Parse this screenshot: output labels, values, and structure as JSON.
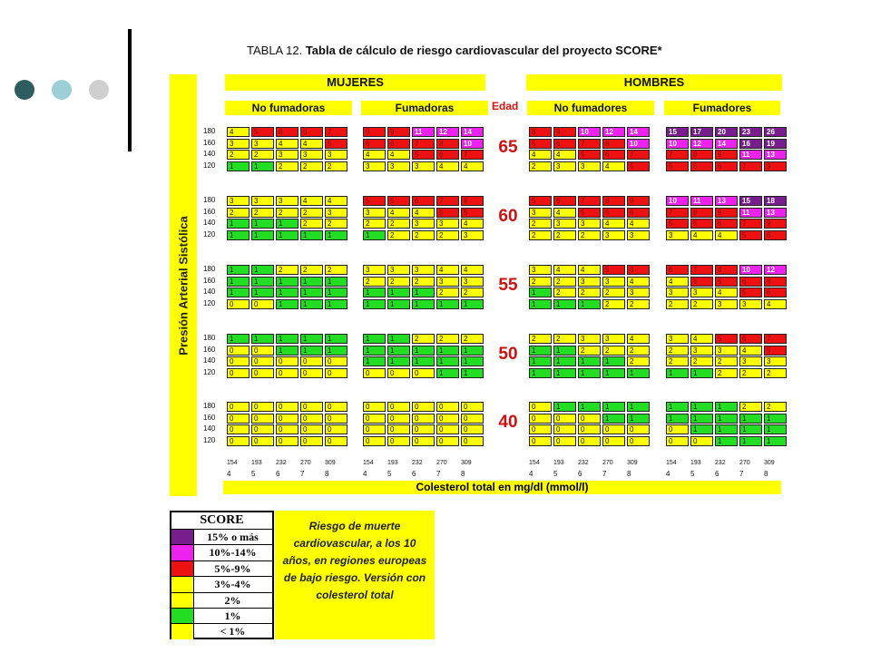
{
  "slide": {
    "title_prefix": "TABLA 12.",
    "title_main": "Tabla de cálculo de riesgo cardiovascular del proyecto SCORE*"
  },
  "table": {
    "ylabel": "Presión Arterial Sistólica",
    "women_label": "MUJERES",
    "men_label": "HOMBRES",
    "non_smokers_label_women": "No fumadoras",
    "smokers_label_women": "Fumadoras",
    "non_smokers_label_men": "No fumadores",
    "smokers_label_men": "Fumadores",
    "age_header": "Edad",
    "xlabel": "Colesterol total en mg/dl (mmol/l)",
    "bp_levels": [
      "180",
      "160",
      "140",
      "120"
    ],
    "chol_mg": [
      "154",
      "193",
      "232",
      "270",
      "309"
    ],
    "chol_mmol": [
      "4",
      "5",
      "6",
      "7",
      "8"
    ],
    "ages": [
      {
        "age": "65",
        "women_non": [
          [
            "4",
            "5",
            "6",
            "6",
            "7"
          ],
          [
            "3",
            "3",
            "4",
            "4",
            "5"
          ],
          [
            "2",
            "2",
            "3",
            "3",
            "3"
          ],
          [
            "1",
            "1",
            "2",
            "2",
            "2"
          ]
        ],
        "women_smk": [
          [
            "9",
            "9",
            "11",
            "12",
            "14"
          ],
          [
            "6",
            "6",
            "7",
            "8",
            "10"
          ],
          [
            "4",
            "4",
            "5",
            "6",
            "7"
          ],
          [
            "3",
            "3",
            "3",
            "4",
            "4"
          ]
        ],
        "men_non": [
          [
            "8",
            "9",
            "10",
            "12",
            "14"
          ],
          [
            "5",
            "6",
            "7",
            "8",
            "10"
          ],
          [
            "4",
            "4",
            "5",
            "6",
            "7"
          ],
          [
            "2",
            "3",
            "3",
            "4",
            "5"
          ]
        ],
        "men_smk": [
          [
            "15",
            "17",
            "20",
            "23",
            "26"
          ],
          [
            "10",
            "12",
            "14",
            "16",
            "19"
          ],
          [
            "7",
            "8",
            "9",
            "11",
            "13"
          ],
          [
            "5",
            "5",
            "6",
            "7",
            "9"
          ]
        ]
      },
      {
        "age": "60",
        "women_non": [
          [
            "3",
            "3",
            "3",
            "4",
            "4"
          ],
          [
            "2",
            "2",
            "2",
            "2",
            "3"
          ],
          [
            "1",
            "1",
            "1",
            "2",
            "2"
          ],
          [
            "1",
            "1",
            "1",
            "1",
            "1"
          ]
        ],
        "women_smk": [
          [
            "5",
            "5",
            "6",
            "7",
            "8"
          ],
          [
            "3",
            "4",
            "4",
            "5",
            "5"
          ],
          [
            "2",
            "2",
            "3",
            "3",
            "4"
          ],
          [
            "1",
            "2",
            "2",
            "2",
            "3"
          ]
        ],
        "men_non": [
          [
            "5",
            "6",
            "7",
            "8",
            "9"
          ],
          [
            "3",
            "4",
            "5",
            "5",
            "6"
          ],
          [
            "2",
            "3",
            "3",
            "4",
            "4"
          ],
          [
            "2",
            "2",
            "2",
            "3",
            "3"
          ]
        ],
        "men_smk": [
          [
            "10",
            "11",
            "13",
            "15",
            "18"
          ],
          [
            "7",
            "8",
            "9",
            "11",
            "13"
          ],
          [
            "5",
            "5",
            "6",
            "7",
            "9"
          ],
          [
            "3",
            "4",
            "4",
            "5",
            "6"
          ]
        ]
      },
      {
        "age": "55",
        "women_non": [
          [
            "1",
            "1",
            "2",
            "2",
            "2"
          ],
          [
            "1",
            "1",
            "1",
            "1",
            "1"
          ],
          [
            "1",
            "1",
            "1",
            "1",
            "1"
          ],
          [
            "0",
            "0",
            "1",
            "1",
            "1"
          ]
        ],
        "women_smk": [
          [
            "3",
            "3",
            "3",
            "4",
            "4"
          ],
          [
            "2",
            "2",
            "2",
            "3",
            "3"
          ],
          [
            "1",
            "1",
            "1",
            "2",
            "2"
          ],
          [
            "1",
            "1",
            "1",
            "1",
            "1"
          ]
        ],
        "men_non": [
          [
            "3",
            "4",
            "4",
            "5",
            "6"
          ],
          [
            "2",
            "2",
            "3",
            "3",
            "4"
          ],
          [
            "1",
            "2",
            "2",
            "2",
            "3"
          ],
          [
            "1",
            "1",
            "1",
            "2",
            "2"
          ]
        ],
        "men_smk": [
          [
            "6",
            "7",
            "8",
            "10",
            "12"
          ],
          [
            "4",
            "5",
            "5",
            "6",
            "8"
          ],
          [
            "3",
            "3",
            "4",
            "5",
            "6"
          ],
          [
            "2",
            "2",
            "3",
            "3",
            "4"
          ]
        ]
      },
      {
        "age": "50",
        "women_non": [
          [
            "1",
            "1",
            "1",
            "1",
            "1"
          ],
          [
            "0",
            "0",
            "1",
            "1",
            "1"
          ],
          [
            "0",
            "0",
            "0",
            "0",
            "0"
          ],
          [
            "0",
            "0",
            "0",
            "0",
            "0"
          ]
        ],
        "women_smk": [
          [
            "1",
            "1",
            "2",
            "2",
            "2"
          ],
          [
            "1",
            "1",
            "1",
            "1",
            "1"
          ],
          [
            "1",
            "1",
            "1",
            "1",
            "1"
          ],
          [
            "0",
            "0",
            "0",
            "1",
            "1"
          ]
        ],
        "men_non": [
          [
            "2",
            "2",
            "3",
            "3",
            "4"
          ],
          [
            "1",
            "1",
            "2",
            "2",
            "2"
          ],
          [
            "1",
            "1",
            "1",
            "1",
            "2"
          ],
          [
            "1",
            "1",
            "1",
            "1",
            "1"
          ]
        ],
        "men_smk": [
          [
            "3",
            "4",
            "5",
            "6",
            "7"
          ],
          [
            "2",
            "3",
            "3",
            "4",
            "5"
          ],
          [
            "2",
            "2",
            "2",
            "3",
            "3"
          ],
          [
            "1",
            "1",
            "2",
            "2",
            "2"
          ]
        ]
      },
      {
        "age": "40",
        "women_non": [
          [
            "0",
            "0",
            "0",
            "0",
            "0"
          ],
          [
            "0",
            "0",
            "0",
            "0",
            "0"
          ],
          [
            "0",
            "0",
            "0",
            "0",
            "0"
          ],
          [
            "0",
            "0",
            "0",
            "0",
            "0"
          ]
        ],
        "women_smk": [
          [
            "0",
            "0",
            "0",
            "0",
            "0"
          ],
          [
            "0",
            "0",
            "0",
            "0",
            "0"
          ],
          [
            "0",
            "0",
            "0",
            "0",
            "0"
          ],
          [
            "0",
            "0",
            "0",
            "0",
            "0"
          ]
        ],
        "men_non": [
          [
            "0",
            "1",
            "1",
            "1",
            "1"
          ],
          [
            "0",
            "0",
            "0",
            "1",
            "1"
          ],
          [
            "0",
            "0",
            "0",
            "0",
            "0"
          ],
          [
            "0",
            "0",
            "0",
            "0",
            "0"
          ]
        ],
        "men_smk": [
          [
            "1",
            "1",
            "1",
            "2",
            "2"
          ],
          [
            "1",
            "1",
            "1",
            "1",
            "1"
          ],
          [
            "0",
            "1",
            "1",
            "1",
            "1"
          ],
          [
            "0",
            "0",
            "1",
            "1",
            "1"
          ]
        ]
      }
    ]
  },
  "legend": {
    "title": "SCORE",
    "items": [
      {
        "label": "15% o más",
        "color": "#771e8c"
      },
      {
        "label": "10%-14%",
        "color": "#ee22ee"
      },
      {
        "label": "5%-9%",
        "color": "#ee1111"
      },
      {
        "label": "3%-4%",
        "color": "#ffff00"
      },
      {
        "label": "2%",
        "color": "#ffff00"
      },
      {
        "label": "1%",
        "color": "#22dd22"
      },
      {
        "label": "< 1%",
        "color": "#ffff00"
      }
    ]
  },
  "note": {
    "text": "Riesgo de muerte cardiovascular, a los 10 años, en regiones europeas de bajo riesgo. Versión con colesterol total"
  },
  "decor": {
    "dot_colors": [
      "#2e5d61",
      "#9ccfd6",
      "#cfcfcf"
    ]
  }
}
